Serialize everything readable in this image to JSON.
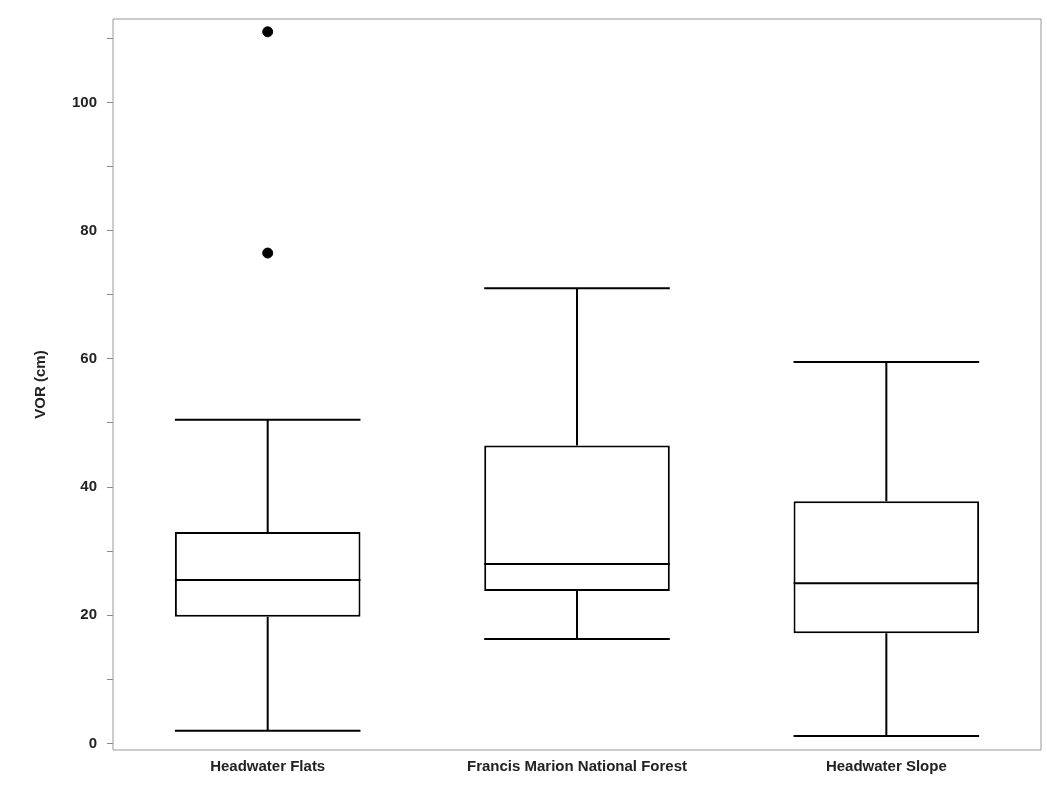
{
  "chart_data": {
    "type": "box",
    "ylabel": "VOR (cm)",
    "categories": [
      "Headwater Flats",
      "Francis Marion National Forest",
      "Headwater Slope"
    ],
    "boxes": [
      {
        "low": 2,
        "q1": 19.8,
        "median": 25.5,
        "q3": 33,
        "high": 50.5,
        "outliers": [
          111,
          76.5
        ]
      },
      {
        "low": 16.3,
        "q1": 23.8,
        "median": 28,
        "q3": 46.5,
        "high": 71
      },
      {
        "low": 1.2,
        "q1": 17.2,
        "median": 25,
        "q3": 37.8,
        "high": 59.5
      }
    ],
    "color": "#000000",
    "ylim": [
      -1,
      113
    ],
    "yticks": [
      0,
      {
        "value": 10,
        "label": null
      },
      20,
      {
        "value": 30,
        "label": null
      },
      40,
      {
        "value": 50,
        "label": null
      },
      60,
      {
        "value": 70,
        "label": null
      },
      80,
      {
        "value": 90,
        "label": null
      },
      100,
      {
        "value": 110,
        "label": null
      }
    ],
    "grid": false,
    "legend": false
  }
}
